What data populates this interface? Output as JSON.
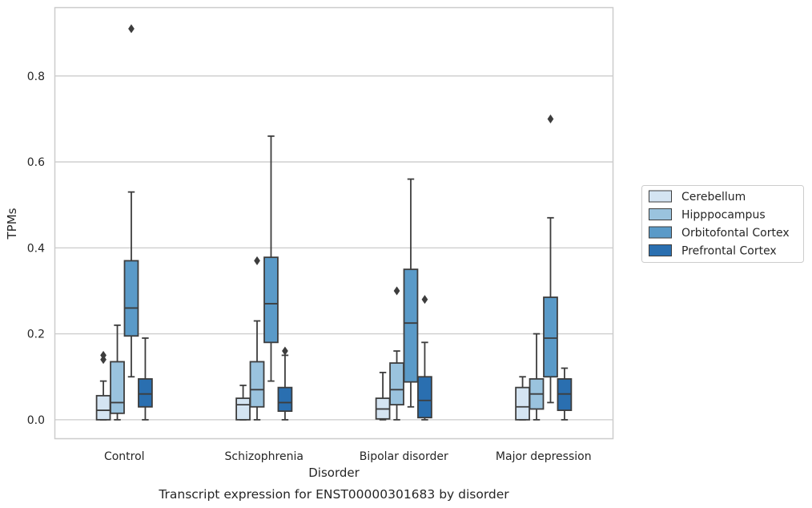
{
  "chart_data": {
    "type": "boxplot",
    "title": "",
    "caption": "Transcript expression for ENST00000301683 by disorder",
    "xlabel": "Disorder",
    "ylabel": "TPMs",
    "ylim": [
      -0.045,
      0.96
    ],
    "yticks": [
      0.0,
      0.2,
      0.4,
      0.6,
      0.8
    ],
    "ytick_labels": [
      "0.0",
      "0.2",
      "0.4",
      "0.6",
      "0.8"
    ],
    "grid": "horizontal",
    "legend_position": "right",
    "categories": [
      "Control",
      "Schizophrenia",
      "Bipolar disorder",
      "Major depression"
    ],
    "series": [
      {
        "name": "Cerebellum",
        "color": "#d4e4f2",
        "boxes": [
          {
            "whislo": 0.0,
            "q1": 0.0,
            "med": 0.022,
            "q3": 0.056,
            "whishi": 0.09,
            "fliers": [
              0.14,
              0.15
            ]
          },
          {
            "whislo": 0.0,
            "q1": 0.0,
            "med": 0.035,
            "q3": 0.05,
            "whishi": 0.08,
            "fliers": []
          },
          {
            "whislo": 0.0,
            "q1": 0.002,
            "med": 0.025,
            "q3": 0.05,
            "whishi": 0.11,
            "fliers": []
          },
          {
            "whislo": 0.0,
            "q1": 0.0,
            "med": 0.03,
            "q3": 0.075,
            "whishi": 0.1,
            "fliers": []
          }
        ]
      },
      {
        "name": "Hipppocampus",
        "color": "#9ac3de",
        "boxes": [
          {
            "whislo": 0.0,
            "q1": 0.015,
            "med": 0.04,
            "q3": 0.135,
            "whishi": 0.22,
            "fliers": []
          },
          {
            "whislo": 0.0,
            "q1": 0.03,
            "med": 0.07,
            "q3": 0.135,
            "whishi": 0.23,
            "fliers": [
              0.37
            ]
          },
          {
            "whislo": 0.0,
            "q1": 0.035,
            "med": 0.07,
            "q3": 0.132,
            "whishi": 0.16,
            "fliers": [
              0.3
            ]
          },
          {
            "whislo": 0.0,
            "q1": 0.025,
            "med": 0.06,
            "q3": 0.095,
            "whishi": 0.2,
            "fliers": []
          }
        ]
      },
      {
        "name": "Orbitofontal Cortex",
        "color": "#5a9ac8",
        "boxes": [
          {
            "whislo": 0.1,
            "q1": 0.195,
            "med": 0.26,
            "q3": 0.37,
            "whishi": 0.53,
            "fliers": [
              0.91
            ]
          },
          {
            "whislo": 0.09,
            "q1": 0.18,
            "med": 0.27,
            "q3": 0.378,
            "whishi": 0.66,
            "fliers": []
          },
          {
            "whislo": 0.03,
            "q1": 0.088,
            "med": 0.225,
            "q3": 0.35,
            "whishi": 0.56,
            "fliers": []
          },
          {
            "whislo": 0.04,
            "q1": 0.1,
            "med": 0.19,
            "q3": 0.285,
            "whishi": 0.47,
            "fliers": [
              0.7
            ]
          }
        ]
      },
      {
        "name": "Prefrontal Cortex",
        "color": "#2a6fb0",
        "boxes": [
          {
            "whislo": 0.0,
            "q1": 0.03,
            "med": 0.06,
            "q3": 0.095,
            "whishi": 0.19,
            "fliers": []
          },
          {
            "whislo": 0.0,
            "q1": 0.02,
            "med": 0.04,
            "q3": 0.075,
            "whishi": 0.15,
            "fliers": [
              0.16
            ]
          },
          {
            "whislo": 0.0,
            "q1": 0.005,
            "med": 0.045,
            "q3": 0.1,
            "whishi": 0.18,
            "fliers": [
              0.28
            ]
          },
          {
            "whislo": 0.0,
            "q1": 0.022,
            "med": 0.06,
            "q3": 0.095,
            "whishi": 0.12,
            "fliers": []
          }
        ]
      }
    ]
  }
}
